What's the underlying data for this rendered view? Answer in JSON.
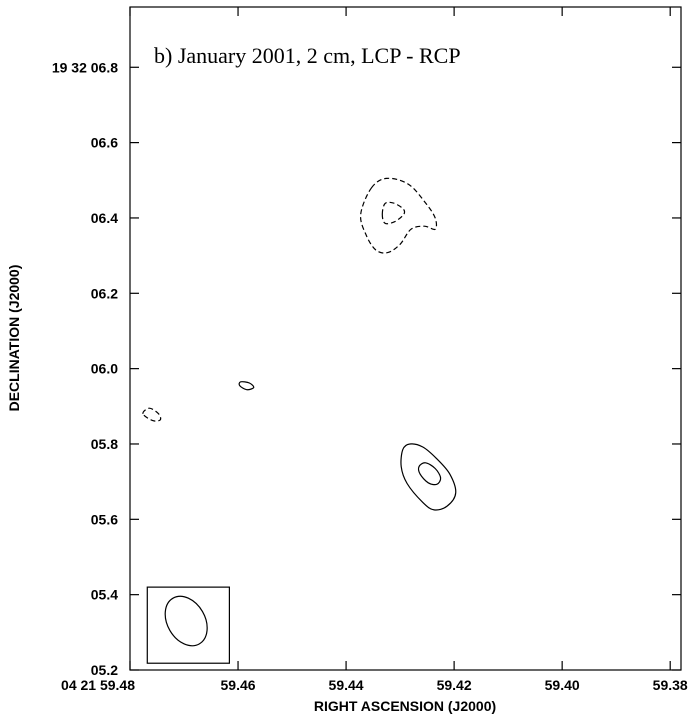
{
  "chart_data": {
    "type": "contour",
    "title": "b) January 2001, 2 cm, LCP - RCP",
    "xlabel": "RIGHT ASCENSION (J2000)",
    "ylabel": "DECLINATION (J2000)",
    "xlim": [
      59.48,
      59.378
    ],
    "ylim": [
      5.2,
      6.96
    ],
    "x_ticks": [
      {
        "value": 59.48,
        "label": "04 21 59.48"
      },
      {
        "value": 59.46,
        "label": "59.46"
      },
      {
        "value": 59.44,
        "label": "59.44"
      },
      {
        "value": 59.42,
        "label": "59.42"
      },
      {
        "value": 59.4,
        "label": "59.40"
      },
      {
        "value": 59.38,
        "label": "59.38"
      }
    ],
    "y_ticks": [
      {
        "value": 5.2,
        "label": "05.2"
      },
      {
        "value": 5.4,
        "label": "05.4"
      },
      {
        "value": 5.6,
        "label": "05.6"
      },
      {
        "value": 5.8,
        "label": "05.8"
      },
      {
        "value": 6.0,
        "label": "06.0"
      },
      {
        "value": 6.2,
        "label": "06.2"
      },
      {
        "value": 6.4,
        "label": "06.4"
      },
      {
        "value": 6.6,
        "label": "06.6"
      },
      {
        "value": 6.8,
        "label": "19 32 06.8"
      }
    ],
    "grid": false,
    "contours": [
      {
        "id": "negative-outer",
        "sign": "negative",
        "style": "dashed",
        "points": [
          [
            59.4353,
            6.48
          ],
          [
            59.4325,
            6.505
          ],
          [
            59.4285,
            6.49
          ],
          [
            59.4253,
            6.44
          ],
          [
            59.4235,
            6.4
          ],
          [
            59.4235,
            6.37
          ],
          [
            59.4255,
            6.378
          ],
          [
            59.428,
            6.37
          ],
          [
            59.43,
            6.33
          ],
          [
            59.4323,
            6.308
          ],
          [
            59.4345,
            6.315
          ],
          [
            59.4363,
            6.355
          ],
          [
            59.4373,
            6.41
          ],
          [
            59.4353,
            6.48
          ]
        ]
      },
      {
        "id": "negative-inner",
        "sign": "negative",
        "style": "dashed",
        "points": [
          [
            59.4333,
            6.41
          ],
          [
            59.4328,
            6.438
          ],
          [
            59.4313,
            6.44
          ],
          [
            59.4295,
            6.425
          ],
          [
            59.4293,
            6.41
          ],
          [
            59.431,
            6.39
          ],
          [
            59.4328,
            6.386
          ],
          [
            59.4333,
            6.41
          ]
        ]
      },
      {
        "id": "negative-small",
        "sign": "negative",
        "style": "dashed",
        "points": [
          [
            59.4776,
            5.88
          ],
          [
            59.4764,
            5.895
          ],
          [
            59.4747,
            5.88
          ],
          [
            59.4744,
            5.864
          ],
          [
            59.4758,
            5.862
          ],
          [
            59.4776,
            5.88
          ]
        ]
      },
      {
        "id": "positive-small",
        "sign": "positive",
        "style": "solid",
        "points": [
          [
            59.4595,
            5.965
          ],
          [
            59.4579,
            5.962
          ],
          [
            59.4571,
            5.95
          ],
          [
            59.4584,
            5.944
          ],
          [
            59.4597,
            5.955
          ],
          [
            59.4595,
            5.965
          ]
        ]
      },
      {
        "id": "positive-outer",
        "sign": "positive",
        "style": "solid",
        "points": [
          [
            59.4295,
            5.785
          ],
          [
            59.4282,
            5.8
          ],
          [
            59.4258,
            5.792
          ],
          [
            59.4233,
            5.762
          ],
          [
            59.4208,
            5.72
          ],
          [
            59.4197,
            5.67
          ],
          [
            59.4213,
            5.635
          ],
          [
            59.4237,
            5.625
          ],
          [
            59.4258,
            5.645
          ],
          [
            59.4287,
            5.695
          ],
          [
            59.4298,
            5.74
          ],
          [
            59.4295,
            5.785
          ]
        ]
      },
      {
        "id": "positive-inner",
        "sign": "positive",
        "style": "solid",
        "points": [
          [
            59.4265,
            5.74
          ],
          [
            59.4253,
            5.75
          ],
          [
            59.4235,
            5.735
          ],
          [
            59.4225,
            5.71
          ],
          [
            59.4232,
            5.693
          ],
          [
            59.4248,
            5.697
          ],
          [
            59.4263,
            5.72
          ],
          [
            59.4265,
            5.74
          ]
        ]
      }
    ],
    "beam": {
      "center": [
        59.4696,
        5.33
      ],
      "major_axis": 0.14,
      "minor_axis": 0.1,
      "position_angle_deg": -30,
      "box": {
        "x": [
          59.4768,
          59.4616
        ],
        "y": [
          5.218,
          5.42
        ]
      }
    }
  }
}
